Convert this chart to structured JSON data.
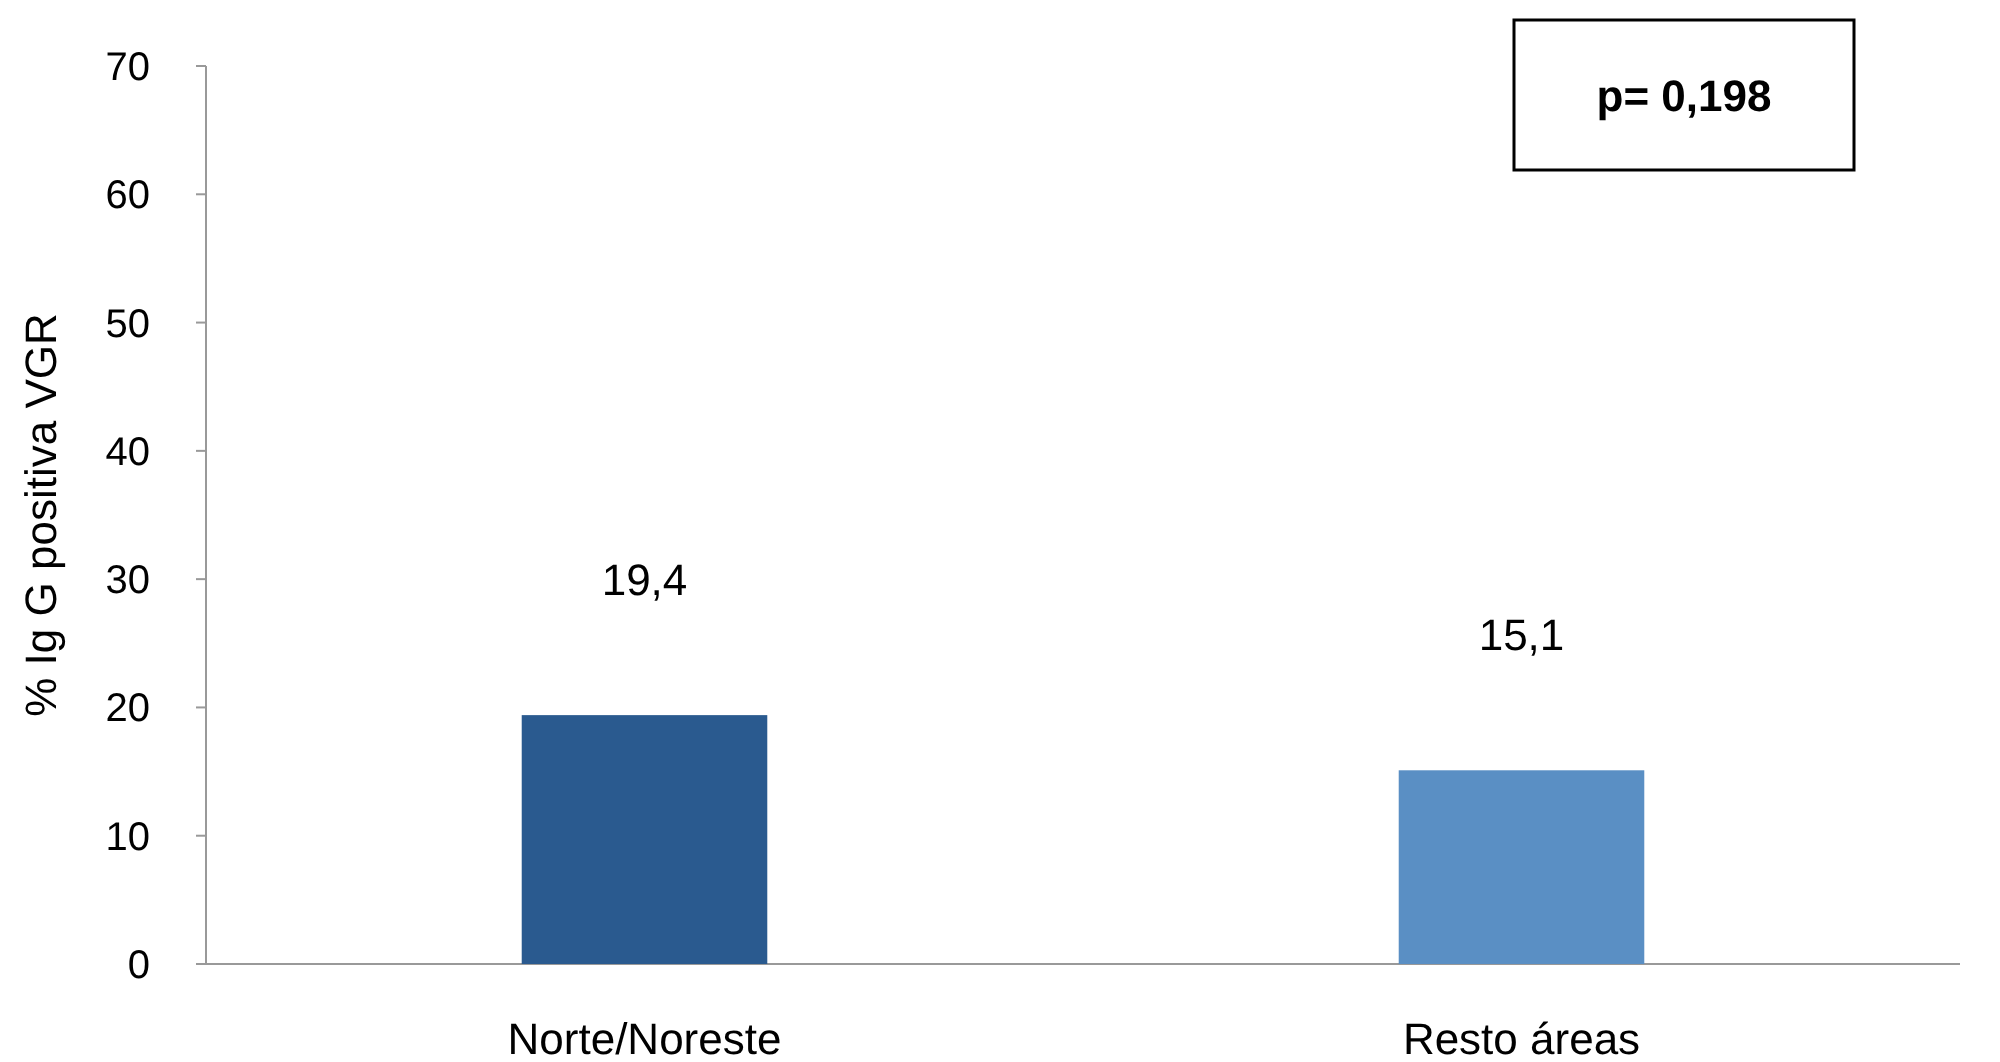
{
  "chart_data": {
    "type": "bar",
    "categories": [
      "Norte/Noreste",
      "Resto áreas"
    ],
    "values": [
      19.4,
      15.1
    ],
    "colors": [
      "#2a5a8f",
      "#5a8fc4"
    ],
    "value_labels": [
      "19,4",
      "15,1"
    ],
    "ylabel": "% Ig G positiva VGR",
    "ylim": [
      0,
      70
    ],
    "yticks": [
      0,
      10,
      20,
      30,
      40,
      50,
      60,
      70
    ],
    "annotations": [
      "p= 0,198"
    ]
  }
}
